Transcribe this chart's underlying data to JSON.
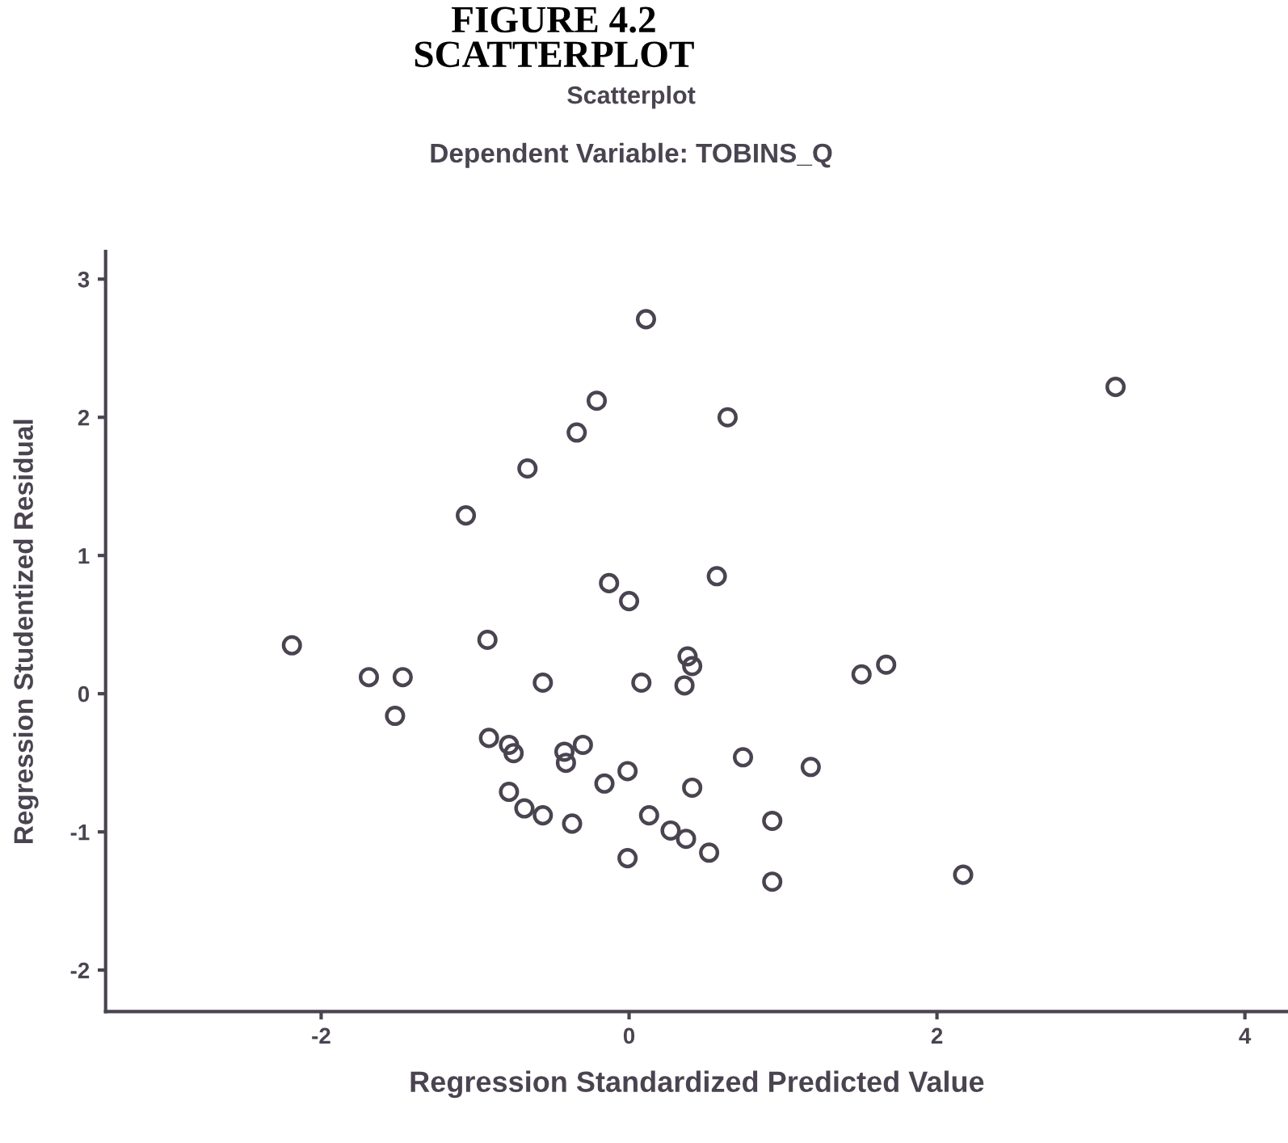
{
  "chart_data": {
    "type": "scatter",
    "title": "FIGURE 4.2\nSCATTERPLOT",
    "subtitle": "Scatterplot",
    "annotations": [
      "Dependent Variable: TOBINS_Q"
    ],
    "xlabel": "Regression Standardized Predicted Value",
    "ylabel": "Regression Studentized Residual",
    "x": [
      0.11,
      -0.21,
      -0.34,
      0.64,
      -0.66,
      -1.06,
      -0.13,
      0.0,
      0.57,
      -2.19,
      -0.92,
      -1.69,
      -1.47,
      -0.56,
      0.08,
      0.38,
      0.41,
      0.36,
      -1.52,
      3.16,
      1.51,
      1.67,
      -0.91,
      -0.78,
      -0.75,
      -0.42,
      -0.41,
      -0.3,
      -0.16,
      -0.01,
      0.41,
      -0.78,
      -0.68,
      -0.56,
      -0.37,
      0.13,
      0.27,
      0.37,
      0.52,
      -0.01,
      0.74,
      1.18,
      0.93,
      0.93,
      2.17
    ],
    "series": [
      {
        "color": "#4a4450",
        "values": [
          2.71,
          2.12,
          1.89,
          2.0,
          1.63,
          1.29,
          0.8,
          0.67,
          0.85,
          0.35,
          0.39,
          0.12,
          0.12,
          0.08,
          0.08,
          0.27,
          0.2,
          0.06,
          -0.16,
          2.22,
          0.14,
          0.21,
          -0.32,
          -0.37,
          -0.43,
          -0.42,
          -0.5,
          -0.37,
          -0.65,
          -0.56,
          -0.68,
          -0.71,
          -0.83,
          -0.88,
          -0.94,
          -0.88,
          -0.99,
          -1.05,
          -1.15,
          -1.19,
          -0.46,
          -0.53,
          -0.92,
          -1.36,
          -1.31
        ]
      }
    ],
    "marker": "circle",
    "grid": false,
    "legend": false,
    "xlim": [
      -3.4,
      4.28
    ],
    "xticks": [
      -2,
      0,
      2,
      4
    ],
    "ylim": [
      -2.3,
      3.2
    ],
    "yticks": [
      -2,
      -1,
      0,
      1,
      2,
      3
    ]
  }
}
